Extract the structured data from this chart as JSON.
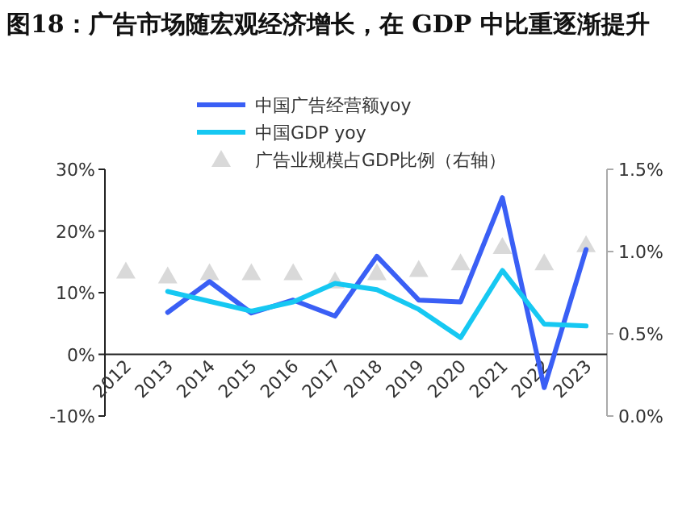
{
  "chart_data": {
    "type": "line",
    "title": "图18：广告市场随宏观经济增长，在 GDP 中比重逐渐提升",
    "categories": [
      "2012",
      "2013",
      "2014",
      "2015",
      "2016",
      "2017",
      "2018",
      "2019",
      "2020",
      "2021",
      "2022",
      "2023"
    ],
    "series": [
      {
        "name": "中国广告经营额yoy",
        "color": "#3a5ff5",
        "marker": "none",
        "values": [
          null,
          6.8,
          11.8,
          6.7,
          8.8,
          6.2,
          15.9,
          8.8,
          8.5,
          25.4,
          -5.4,
          17.0
        ]
      },
      {
        "name": "中国GDP yoy",
        "color": "#16c8f2",
        "marker": "none",
        "values": [
          null,
          10.2,
          8.6,
          7.0,
          8.5,
          11.5,
          10.5,
          7.3,
          2.7,
          13.6,
          4.9,
          4.6
        ]
      },
      {
        "name": "广告业规模占GDP比例（右轴）",
        "type": "scatter",
        "color": "#d9d9d9",
        "marker": "triangle",
        "axis": "y2",
        "values": [
          0.88,
          0.85,
          0.87,
          0.87,
          0.87,
          0.82,
          0.87,
          0.89,
          0.93,
          1.03,
          0.93,
          1.04
        ]
      }
    ],
    "ylim": [
      -10,
      30
    ],
    "yticks": [
      {
        "value": -10,
        "label": "-10%"
      },
      {
        "value": 0,
        "label": "0%"
      },
      {
        "value": 10,
        "label": "10%"
      },
      {
        "value": 20,
        "label": "20%"
      },
      {
        "value": 30,
        "label": "30%"
      }
    ],
    "y2lim": [
      0,
      1.5
    ],
    "y2ticks": [
      {
        "value": 0,
        "label": "0.0%"
      },
      {
        "value": 0.5,
        "label": "0.5%"
      },
      {
        "value": 1,
        "label": "1.0%"
      },
      {
        "value": 1.5,
        "label": "1.5%"
      }
    ],
    "legend": "top"
  }
}
